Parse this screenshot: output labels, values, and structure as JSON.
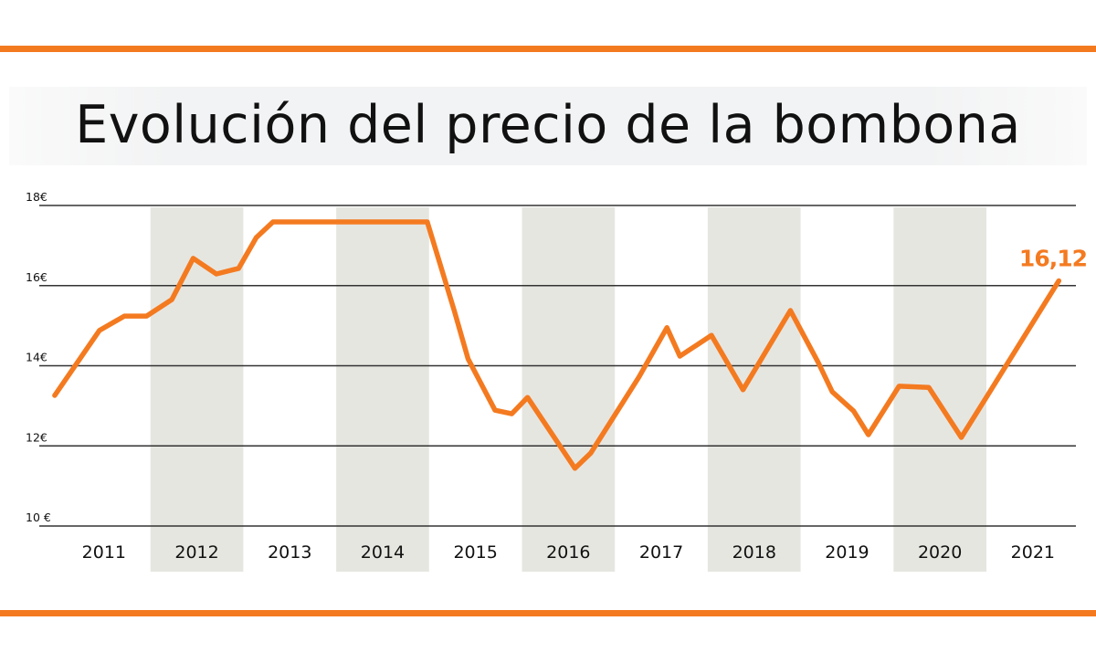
{
  "colors": {
    "accent": "#f47a20",
    "band": "#e6e6e1",
    "grid": "#333333",
    "text": "#111111"
  },
  "chart_data": {
    "type": "line",
    "title": "Evolución del precio de la bombona",
    "xlabel": "",
    "ylabel": "",
    "ylim": [
      10,
      18
    ],
    "xlim": [
      2011,
      2022
    ],
    "yticks": [
      10,
      12,
      14,
      16,
      18
    ],
    "ytick_labels": [
      "10 €",
      "12€",
      "14€",
      "16€",
      "18€"
    ],
    "xtick_labels": [
      "2011",
      "2012",
      "2013",
      "2014",
      "2015",
      "2016",
      "2017",
      "2018",
      "2019",
      "2020",
      "2021"
    ],
    "grid": "horizontal",
    "alternating_year_bands": true,
    "series": [
      {
        "x": [
          2010.97,
          2011.45,
          2011.72,
          2011.96,
          2012.23,
          2012.46,
          2012.71,
          2012.95,
          2013.14,
          2013.32,
          2014.98,
          2015.27,
          2015.42,
          2015.71,
          2015.89,
          2016.06,
          2016.57,
          2016.74,
          2017.26,
          2017.56,
          2017.7,
          2018.04,
          2018.38,
          2018.89,
          2019.19,
          2019.34,
          2019.57,
          2019.73,
          2020.06,
          2020.38,
          2020.73,
          2021.05,
          2021.78
        ],
        "y": [
          13.26,
          14.88,
          15.24,
          15.24,
          15.65,
          16.68,
          16.29,
          16.43,
          17.2,
          17.59,
          17.59,
          15.38,
          14.17,
          12.89,
          12.8,
          13.21,
          11.44,
          11.82,
          13.72,
          14.95,
          14.24,
          14.76,
          13.4,
          15.38,
          14.08,
          13.35,
          12.87,
          12.28,
          13.49,
          13.46,
          12.21,
          13.4,
          16.12
        ]
      }
    ],
    "annotations": [
      {
        "text": "16,12",
        "x": 2021.78,
        "y": 16.12
      }
    ]
  }
}
